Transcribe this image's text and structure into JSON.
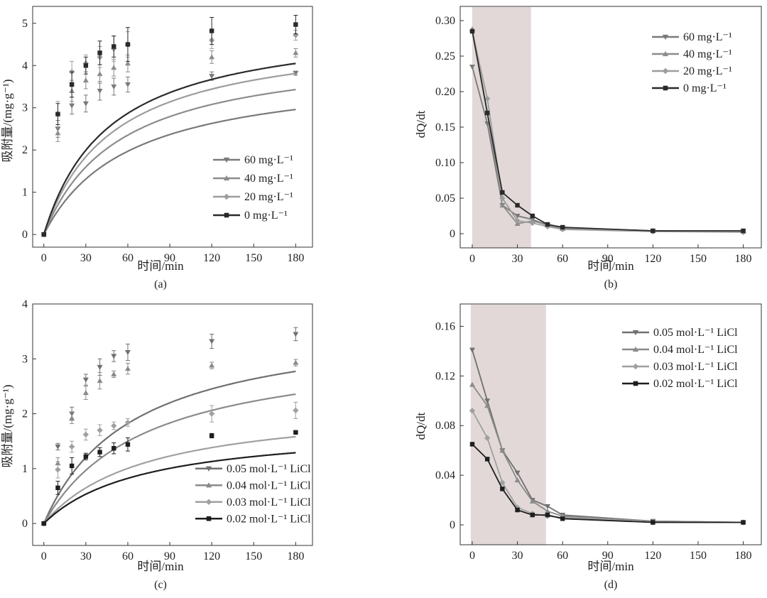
{
  "chart_data": [
    {
      "id": "a",
      "type": "line",
      "panel_label": "(a)",
      "xlabel": "时间/min",
      "ylabel": "吸附量/(mg·g⁻¹)",
      "xlim": [
        -8,
        192
      ],
      "ylim": [
        -0.3,
        5.4
      ],
      "xticks": [
        0,
        30,
        60,
        90,
        120,
        150,
        180
      ],
      "xtick_labels": [
        "0",
        "30",
        "60",
        "90",
        "120",
        "150",
        "180"
      ],
      "yticks": [
        0,
        1,
        2,
        3,
        4,
        5
      ],
      "ytick_labels": [
        "0",
        "1",
        "2",
        "3",
        "4",
        "5"
      ],
      "legend_position": "bottom-right",
      "shaded_region": null,
      "series": [
        {
          "name": "60 mg·L⁻¹",
          "color": "#7a7a7a",
          "marker": "triangle-down",
          "curve": "fit",
          "fit": {
            "qe": 3.95,
            "k": 0.0042,
            "model": "pso"
          },
          "x": [
            0,
            10,
            20,
            30,
            40,
            50,
            60,
            120,
            180
          ],
          "y": [
            0,
            2.5,
            3.05,
            3.1,
            3.4,
            3.5,
            3.55,
            3.75,
            3.82
          ],
          "err": [
            0,
            0.2,
            0.2,
            0.2,
            0.22,
            0.2,
            0.18,
            0.1,
            0.05
          ]
        },
        {
          "name": "40 mg·L⁻¹",
          "color": "#8c8c8c",
          "marker": "triangle-up",
          "curve": "fit",
          "fit": {
            "qe": 4.45,
            "k": 0.0042,
            "model": "pso"
          },
          "x": [
            0,
            10,
            20,
            30,
            40,
            50,
            60,
            120,
            180
          ],
          "y": [
            0,
            2.4,
            3.4,
            3.65,
            3.8,
            3.95,
            4.05,
            4.2,
            4.3
          ],
          "err": [
            0,
            0.2,
            0.25,
            0.2,
            0.22,
            0.2,
            0.2,
            0.15,
            0.1
          ]
        },
        {
          "name": "20 mg·L⁻¹",
          "color": "#9d9d9d",
          "marker": "diamond",
          "curve": "fit",
          "fit": {
            "qe": 4.85,
            "k": 0.0042,
            "model": "pso"
          },
          "x": [
            0,
            10,
            20,
            30,
            40,
            50,
            60,
            120,
            180
          ],
          "y": [
            0,
            2.85,
            3.85,
            4.05,
            4.2,
            4.4,
            4.5,
            4.6,
            4.72
          ],
          "err": [
            0,
            0.3,
            0.25,
            0.2,
            0.25,
            0.3,
            0.3,
            0.2,
            0.12
          ]
        },
        {
          "name": "0 mg·L⁻¹",
          "color": "#2a2a2a",
          "marker": "square",
          "curve": "fit",
          "fit": {
            "qe": 5.1,
            "k": 0.0042,
            "model": "pso"
          },
          "x": [
            0,
            10,
            20,
            30,
            40,
            50,
            60,
            120,
            180
          ],
          "y": [
            0,
            2.85,
            3.55,
            4.0,
            4.3,
            4.45,
            4.5,
            4.82,
            4.97
          ],
          "err": [
            0,
            0.25,
            0.3,
            0.2,
            0.28,
            0.25,
            0.4,
            0.32,
            0.22
          ]
        }
      ]
    },
    {
      "id": "b",
      "type": "line",
      "panel_label": "(b)",
      "xlabel": "时间/min",
      "ylabel": "dQ/dt",
      "xlim": [
        -8,
        192
      ],
      "ylim": [
        -0.02,
        0.32
      ],
      "xticks": [
        0,
        30,
        60,
        90,
        120,
        150,
        180
      ],
      "xtick_labels": [
        "0",
        "30",
        "60",
        "90",
        "120",
        "150",
        "180"
      ],
      "yticks": [
        0,
        0.05,
        0.1,
        0.15,
        0.2,
        0.25,
        0.3
      ],
      "ytick_labels": [
        "0",
        "0.05",
        "0.10",
        "0.15",
        "0.20",
        "0.25",
        "0.30"
      ],
      "legend_position": "top-right",
      "shaded_region": [
        0,
        39
      ],
      "series": [
        {
          "name": "60 mg·L⁻¹",
          "color": "#7a7a7a",
          "marker": "triangle-down",
          "curve": "polyline",
          "x": [
            0,
            10,
            20,
            30,
            40,
            50,
            60,
            120,
            180
          ],
          "y": [
            0.235,
            0.155,
            0.04,
            0.025,
            0.02,
            0.012,
            0.008,
            0.004,
            0.003
          ]
        },
        {
          "name": "40 mg·L⁻¹",
          "color": "#8c8c8c",
          "marker": "triangle-up",
          "curve": "polyline",
          "x": [
            0,
            10,
            20,
            30,
            40,
            50,
            60,
            120,
            180
          ],
          "y": [
            0.288,
            0.17,
            0.04,
            0.014,
            0.018,
            0.012,
            0.007,
            0.004,
            0.003
          ]
        },
        {
          "name": "20 mg·L⁻¹",
          "color": "#9d9d9d",
          "marker": "diamond",
          "curve": "polyline",
          "x": [
            0,
            10,
            20,
            30,
            40,
            50,
            60,
            120,
            180
          ],
          "y": [
            0.285,
            0.19,
            0.05,
            0.018,
            0.015,
            0.01,
            0.006,
            0.003,
            0.002
          ]
        },
        {
          "name": "0 mg·L⁻¹",
          "color": "#2a2a2a",
          "marker": "square",
          "curve": "polyline",
          "x": [
            0,
            10,
            20,
            30,
            40,
            50,
            60,
            120,
            180
          ],
          "y": [
            0.285,
            0.17,
            0.058,
            0.04,
            0.025,
            0.013,
            0.009,
            0.004,
            0.004
          ]
        }
      ]
    },
    {
      "id": "c",
      "type": "line",
      "panel_label": "(c)",
      "xlabel": "时间/min",
      "ylabel": "吸附量/(mg·g⁻¹)",
      "xlim": [
        -8,
        192
      ],
      "ylim": [
        -0.4,
        4.0
      ],
      "xticks": [
        0,
        30,
        60,
        90,
        120,
        150,
        180
      ],
      "xtick_labels": [
        "0",
        "30",
        "60",
        "90",
        "120",
        "150",
        "180"
      ],
      "yticks": [
        0,
        1,
        2,
        3,
        4
      ],
      "ytick_labels": [
        "0",
        "1",
        "2",
        "3",
        "4"
      ],
      "legend_position": "bottom-right",
      "shaded_region": null,
      "series": [
        {
          "name": "0.05 mol·L⁻¹ LiCl",
          "color": "#707070",
          "marker": "triangle-down",
          "curve": "fit",
          "fit": {
            "qe": 3.75,
            "k": 0.0042,
            "model": "pso"
          },
          "x": [
            0,
            10,
            20,
            30,
            40,
            50,
            60,
            120,
            180
          ],
          "y": [
            0,
            1.4,
            2.0,
            2.62,
            2.85,
            3.05,
            3.12,
            3.32,
            3.45
          ],
          "err": [
            0,
            0.06,
            0.12,
            0.1,
            0.15,
            0.1,
            0.15,
            0.13,
            0.12
          ]
        },
        {
          "name": "0.04 mol·L⁻¹ LiCl",
          "color": "#8a8a8a",
          "marker": "triangle-up",
          "curve": "fit",
          "fit": {
            "qe": 3.3,
            "k": 0.0042,
            "model": "pso"
          },
          "x": [
            0,
            10,
            20,
            30,
            40,
            50,
            60,
            120,
            180
          ],
          "y": [
            0,
            1.1,
            1.92,
            2.38,
            2.6,
            2.72,
            2.82,
            2.88,
            2.93
          ],
          "err": [
            0,
            0.1,
            0.1,
            0.12,
            0.15,
            0.06,
            0.1,
            0.06,
            0.06
          ]
        },
        {
          "name": "0.03 mol·L⁻¹ LiCl",
          "color": "#a0a0a0",
          "marker": "diamond",
          "curve": "fit",
          "fit": {
            "qe": 2.22,
            "k": 0.0062,
            "model": "pso"
          },
          "x": [
            0,
            10,
            20,
            30,
            40,
            50,
            60,
            120,
            180
          ],
          "y": [
            0,
            0.98,
            1.4,
            1.62,
            1.7,
            1.78,
            1.84,
            2.0,
            2.06
          ],
          "err": [
            0,
            0.15,
            0.1,
            0.1,
            0.1,
            0.07,
            0.07,
            0.15,
            0.15
          ]
        },
        {
          "name": "0.02 mol·L⁻¹ LiCl",
          "color": "#1e1e1e",
          "marker": "square",
          "curve": "fit",
          "fit": {
            "qe": 1.8,
            "k": 0.0078,
            "model": "pso"
          },
          "x": [
            0,
            10,
            20,
            30,
            40,
            50,
            60,
            120,
            180
          ],
          "y": [
            0,
            0.65,
            1.05,
            1.22,
            1.3,
            1.37,
            1.44,
            1.6,
            1.66
          ],
          "err": [
            0,
            0.12,
            0.15,
            0.06,
            0.08,
            0.1,
            0.12,
            0.04,
            0.03
          ]
        }
      ]
    },
    {
      "id": "d",
      "type": "line",
      "panel_label": "(d)",
      "xlabel": "时间/min",
      "ylabel": "dQ/dt",
      "xlim": [
        -8,
        192
      ],
      "ylim": [
        -0.016,
        0.178
      ],
      "xticks": [
        0,
        30,
        60,
        90,
        120,
        150,
        180
      ],
      "xtick_labels": [
        "0",
        "30",
        "60",
        "90",
        "120",
        "150",
        "180"
      ],
      "yticks": [
        0,
        0.04,
        0.08,
        0.12,
        0.16
      ],
      "ytick_labels": [
        "0",
        "0.04",
        "0.08",
        "0.12",
        "0.16"
      ],
      "legend_position": "top-right",
      "shaded_region": [
        -1,
        49
      ],
      "series": [
        {
          "name": "0.05 mol·L⁻¹ LiCl",
          "color": "#707070",
          "marker": "triangle-down",
          "curve": "polyline",
          "x": [
            0,
            10,
            20,
            30,
            40,
            50,
            60,
            120,
            180
          ],
          "y": [
            0.141,
            0.1,
            0.06,
            0.042,
            0.02,
            0.015,
            0.008,
            0.003,
            0.002
          ]
        },
        {
          "name": "0.04 mol·L⁻¹ LiCl",
          "color": "#8a8a8a",
          "marker": "triangle-up",
          "curve": "polyline",
          "x": [
            0,
            10,
            20,
            30,
            40,
            50,
            60,
            120,
            180
          ],
          "y": [
            0.113,
            0.096,
            0.06,
            0.036,
            0.019,
            0.011,
            0.007,
            0.003,
            0.002
          ]
        },
        {
          "name": "0.03 mol·L⁻¹ LiCl",
          "color": "#a0a0a0",
          "marker": "diamond",
          "curve": "polyline",
          "x": [
            0,
            10,
            20,
            30,
            40,
            50,
            60,
            120,
            180
          ],
          "y": [
            0.092,
            0.07,
            0.034,
            0.014,
            0.009,
            0.007,
            0.006,
            0.002,
            0.002
          ]
        },
        {
          "name": "0.02 mol·L⁻¹ LiCl",
          "color": "#1e1e1e",
          "marker": "square",
          "curve": "polyline",
          "x": [
            0,
            10,
            20,
            30,
            40,
            50,
            60,
            120,
            180
          ],
          "y": [
            0.065,
            0.053,
            0.029,
            0.012,
            0.008,
            0.008,
            0.005,
            0.002,
            0.002
          ]
        }
      ]
    }
  ]
}
